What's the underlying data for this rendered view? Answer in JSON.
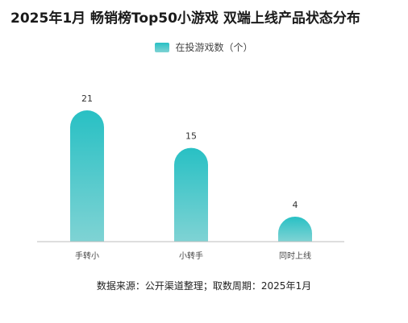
{
  "title": "2025年1月 畅销榜Top50小游戏 双端上线产品状态分布",
  "legend": {
    "label": "在投游戏数（个）"
  },
  "source": "数据来源：公开渠道整理；取数周期：2025年1月",
  "colors": {
    "bar_top": "#28c0c4",
    "bar_bottom": "#7fd3d4",
    "axis": "#bdbdbd"
  },
  "chart_data": {
    "type": "bar",
    "categories": [
      "手转小",
      "小转手",
      "同时上线"
    ],
    "series": [
      {
        "name": "在投游戏数（个）",
        "values": [
          21,
          15,
          4
        ]
      }
    ],
    "ylim": [
      0,
      21
    ],
    "grid": false,
    "legend_position": "top-center"
  }
}
